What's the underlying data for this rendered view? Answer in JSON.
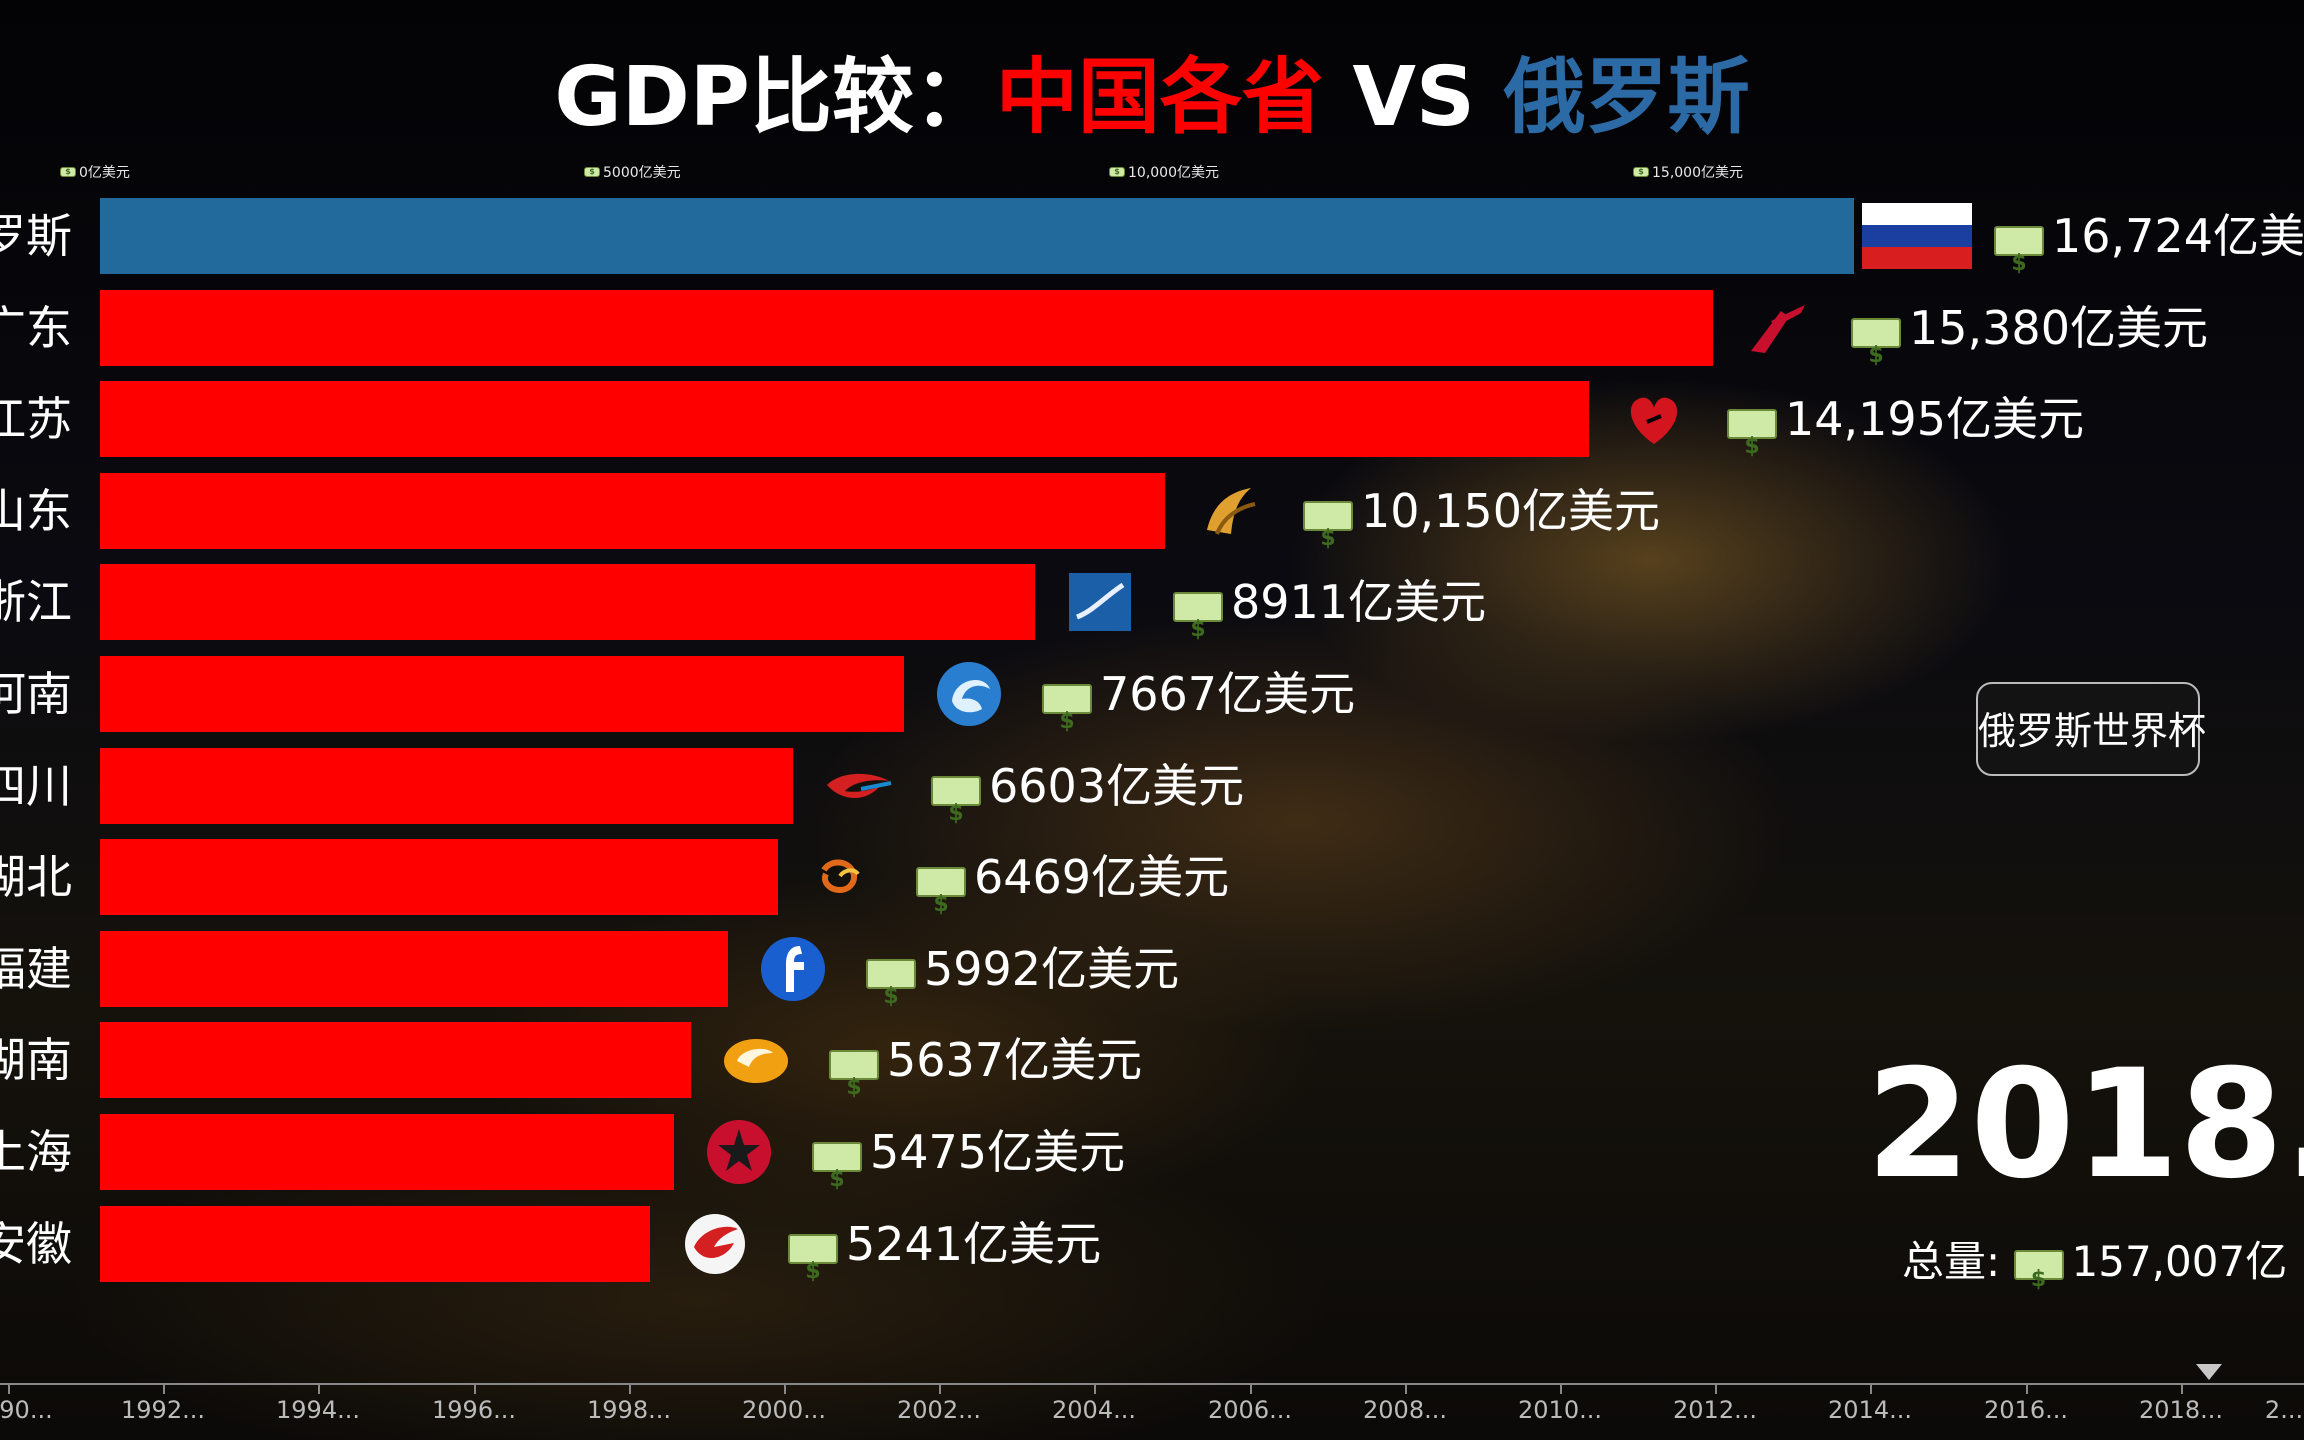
{
  "title": {
    "part1": "GDP比较：",
    "part2": "中国各省",
    "part3": "VS",
    "part4": "俄罗斯"
  },
  "colors": {
    "china_bar": "#ff0000",
    "russia_bar": "#236a9c",
    "title_white": "#ffffff",
    "title_red": "#ff0000",
    "title_blue": "#2c6aa6"
  },
  "top_axis_ticks": [
    "0亿美元",
    "5000亿美元",
    "10,000亿美元",
    "15,000亿美元"
  ],
  "side_button": "俄罗斯世界杯",
  "year_display": "2018.",
  "total": {
    "label": "总量:",
    "value": "157,007亿"
  },
  "timeline": {
    "labels": [
      "90...",
      "1992...",
      "1994...",
      "1996...",
      "1998...",
      "2000...",
      "2002...",
      "2004...",
      "2006...",
      "2008...",
      "2010...",
      "2012...",
      "2014...",
      "2016...",
      "2018...",
      "2..."
    ]
  },
  "chart_data": {
    "type": "bar",
    "orientation": "horizontal",
    "unit": "亿美元",
    "xlim": [
      0,
      16724
    ],
    "categories": [
      "罗斯",
      "广东",
      "江苏",
      "山东",
      "浙江",
      "河南",
      "四川",
      "湖北",
      "福建",
      "湖南",
      "上海",
      "安徽"
    ],
    "values": [
      16724,
      15380,
      14195,
      10150,
      8911,
      7667,
      6603,
      6469,
      5992,
      5637,
      5475,
      5241
    ],
    "value_labels": [
      "16,724亿美元",
      "15,380亿美元",
      "14,195亿美元",
      "10,150亿美元",
      "8911亿美元",
      "7667亿美元",
      "6603亿美元",
      "6469亿美元",
      "5992亿美元",
      "5637亿美元",
      "5475亿美元",
      "5241亿美元"
    ],
    "row_types": [
      "russia",
      "china",
      "china",
      "china",
      "china",
      "china",
      "china",
      "china",
      "china",
      "china",
      "china",
      "china"
    ],
    "logo_icons": [
      "russia-flag-icon",
      "guangdong-tv-logo-icon",
      "jiangsu-tv-logo-icon",
      "shandong-tv-logo-icon",
      "zhejiang-tv-logo-icon",
      "henan-tv-logo-icon",
      "sichuan-tv-logo-icon",
      "hubei-tv-logo-icon",
      "fujian-tv-logo-icon",
      "hunan-tv-logo-icon",
      "shanghai-tv-logo-icon",
      "anhui-tv-logo-icon"
    ],
    "logo_colors": [
      "",
      "#c8102e",
      "#d4141e",
      "#e0a030",
      "#1a5fa8",
      "#2a7ed0",
      "#d42020",
      "#e06a1a",
      "#1a5fd0",
      "#f0a010",
      "#c8102e",
      "#d42020"
    ]
  }
}
